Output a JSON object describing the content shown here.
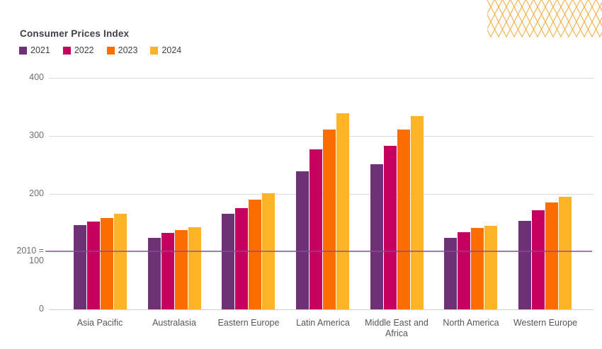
{
  "header": {
    "title": "Consumer Prices Index"
  },
  "legend": {
    "items": [
      {
        "label": "2021",
        "color": "#6F3175"
      },
      {
        "label": "2022",
        "color": "#C6005F"
      },
      {
        "label": "2023",
        "color": "#FC6D00"
      },
      {
        "label": "2024",
        "color": "#FDB527"
      }
    ]
  },
  "chart_data": {
    "type": "bar",
    "title": "Consumer Prices Index",
    "categories": [
      "Asia Pacific",
      "Australasia",
      "Eastern Europe",
      "Latin America",
      "Middle East and Africa",
      "North America",
      "Western Europe"
    ],
    "series": [
      {
        "name": "2021",
        "color": "#6F3175",
        "values": [
          145,
          124,
          165,
          239,
          251,
          124,
          153
        ]
      },
      {
        "name": "2022",
        "color": "#C6005F",
        "values": [
          152,
          132,
          175,
          277,
          283,
          133,
          171
        ]
      },
      {
        "name": "2023",
        "color": "#FC6D00",
        "values": [
          158,
          137,
          190,
          311,
          311,
          141,
          185
        ]
      },
      {
        "name": "2024",
        "color": "#FDB527",
        "values": [
          165,
          142,
          201,
          339,
          334,
          144,
          195
        ]
      }
    ],
    "xlabel": "",
    "ylabel": "",
    "ylim": [
      0,
      400
    ],
    "y_ticks": [
      {
        "value": 0,
        "label": "0"
      },
      {
        "value": 100,
        "label": "2010 = 100"
      },
      {
        "value": 200,
        "label": "200"
      },
      {
        "value": 300,
        "label": "300"
      },
      {
        "value": 400,
        "label": "400"
      }
    ],
    "reference_line": {
      "value": 100,
      "label": "2010 = 100",
      "color": "#8E4A96"
    },
    "grid": true,
    "legend_position": "top-left"
  },
  "decoration": {
    "pattern": "diamond-lattice",
    "color": "#F6A735"
  }
}
